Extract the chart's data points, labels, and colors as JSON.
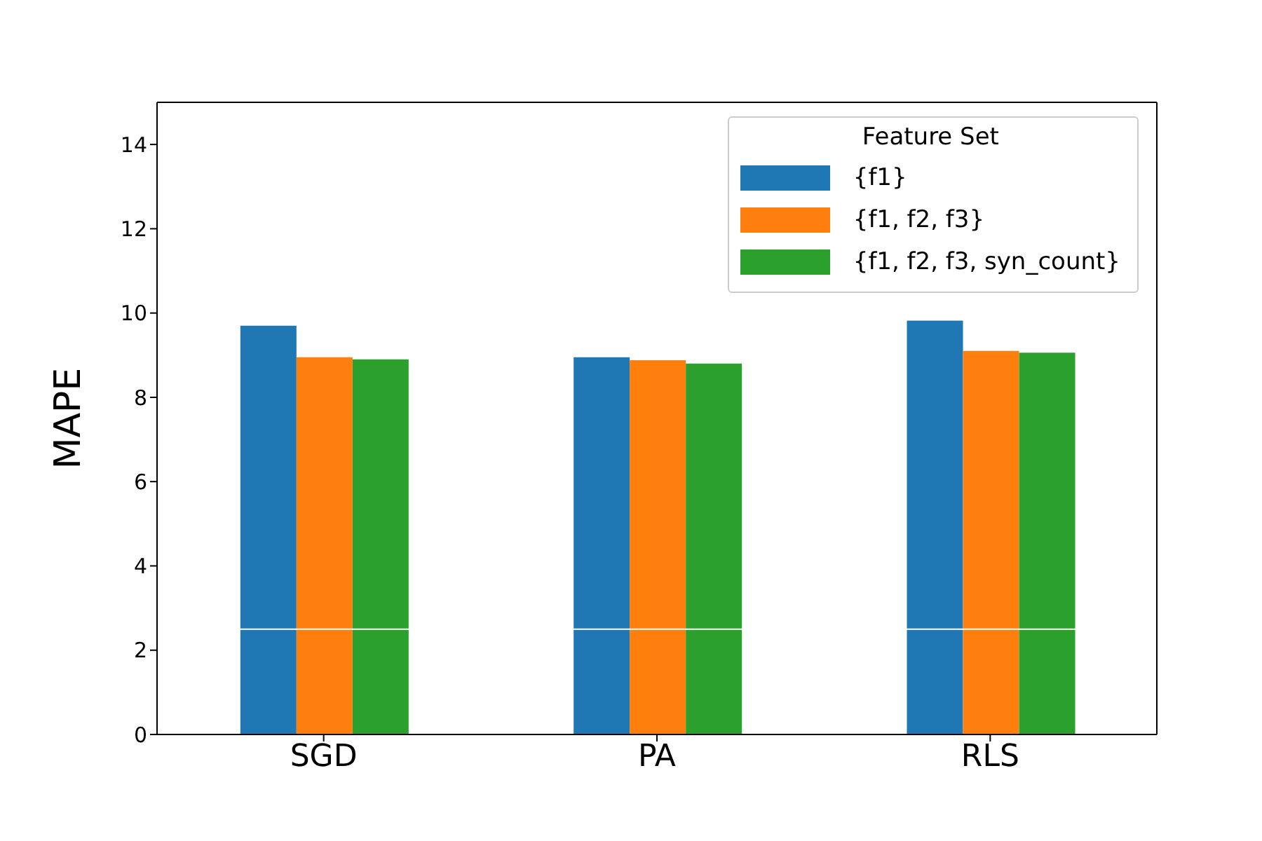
{
  "chart_data": {
    "type": "bar",
    "ylabel": "MAPE",
    "legend_title": "Feature Set",
    "categories": [
      "SGD",
      "PA",
      "RLS"
    ],
    "series": [
      {
        "name": "{f1}",
        "color": "#1f77b4",
        "values": [
          9.7,
          8.95,
          9.82
        ]
      },
      {
        "name": "{f1, f2, f3}",
        "color": "#ff7f0e",
        "values": [
          8.95,
          8.88,
          9.1
        ]
      },
      {
        "name": "{f1, f2, f3, syn_count}",
        "color": "#2ca02c",
        "values": [
          8.9,
          8.8,
          9.06
        ]
      }
    ],
    "ylim": [
      0,
      15
    ],
    "yticks": [
      0,
      2,
      4,
      6,
      8,
      10,
      12,
      14
    ],
    "grid": false,
    "legend": "top right",
    "ref_lines": [
      {
        "axis": "y",
        "value": 2.5,
        "color": "#ffffff"
      }
    ]
  }
}
